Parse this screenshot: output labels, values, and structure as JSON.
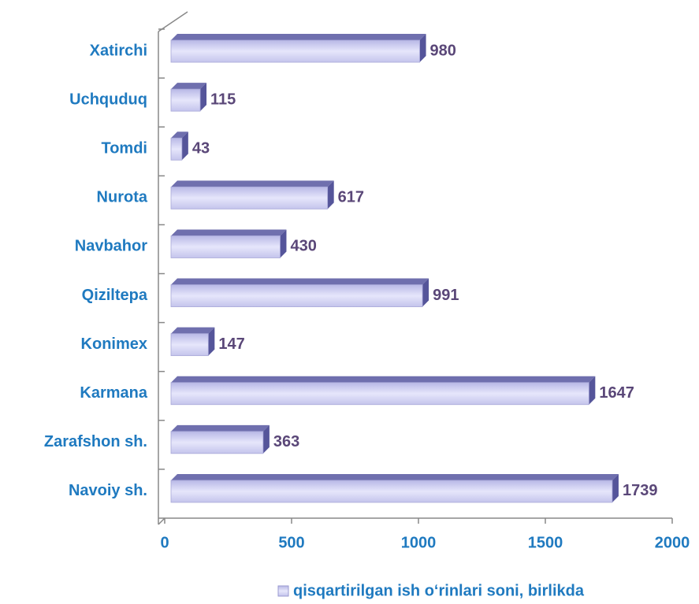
{
  "chart_data": {
    "type": "bar",
    "orientation": "horizontal",
    "categories": [
      "Xatirchi",
      "Uchquduq",
      "Tomdi",
      "Nurota",
      "Navbahor",
      "Qiziltepa",
      "Konimex",
      "Karmana",
      "Zarafshon sh.",
      "Navoiy sh."
    ],
    "series": [
      {
        "name": "qisqartirilgan ish o‘rinlari soni, birlikda",
        "color": "#c8c8ee",
        "values": [
          980,
          115,
          43,
          617,
          430,
          991,
          147,
          1647,
          363,
          1739
        ]
      }
    ],
    "xlim": [
      0,
      2000
    ],
    "xticks": [
      0,
      500,
      1000,
      1500,
      2000
    ],
    "legend": "bottom"
  }
}
